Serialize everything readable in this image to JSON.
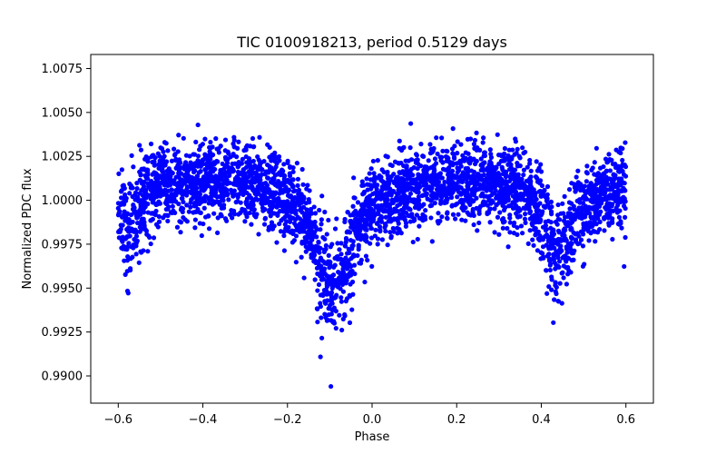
{
  "chart_data": {
    "type": "scatter",
    "title": "TIC 0100918213, period 0.5129 days",
    "xlabel": "Phase",
    "ylabel": "Normalized PDC flux",
    "xlim": [
      -0.665,
      0.665
    ],
    "ylim": [
      0.98845,
      1.0083
    ],
    "xticks": [
      -0.6,
      -0.4,
      -0.2,
      0.0,
      0.2,
      0.4,
      0.6
    ],
    "xtick_labels": [
      "−0.6",
      "−0.4",
      "−0.2",
      "0.0",
      "0.2",
      "0.4",
      "0.6"
    ],
    "yticks": [
      0.99,
      0.9925,
      0.995,
      0.9975,
      1.0,
      1.0025,
      1.005,
      1.0075
    ],
    "ytick_labels": [
      "0.9900",
      "0.9925",
      "0.9950",
      "0.9975",
      "1.0000",
      "1.0025",
      "1.0050",
      "1.0075"
    ],
    "grid": false,
    "marker_color": "#0000ff",
    "series": [
      {
        "color": "#0000ff",
        "x": [
          -0.6,
          -0.59,
          -0.58,
          -0.57,
          -0.56,
          -0.55,
          -0.54,
          -0.53,
          -0.52,
          -0.51,
          -0.5,
          -0.49,
          -0.48,
          -0.47,
          -0.46,
          -0.45,
          -0.44,
          -0.43,
          -0.42,
          -0.41,
          -0.4,
          -0.39,
          -0.38,
          -0.37,
          -0.36,
          -0.35,
          -0.34,
          -0.33,
          -0.32,
          -0.31,
          -0.3,
          -0.29,
          -0.28,
          -0.27,
          -0.26,
          -0.25,
          -0.24,
          -0.23,
          -0.22,
          -0.21,
          -0.2,
          -0.19,
          -0.18,
          -0.17,
          -0.16,
          -0.15,
          -0.14,
          -0.13,
          -0.12,
          -0.11,
          -0.1,
          -0.09,
          -0.08,
          -0.07,
          -0.06,
          -0.05,
          -0.04,
          -0.03,
          -0.02,
          -0.01,
          0.0,
          0.01,
          0.02,
          0.03,
          0.04,
          0.05,
          0.06,
          0.07,
          0.08,
          0.09,
          0.1,
          0.11,
          0.12,
          0.13,
          0.14,
          0.15,
          0.16,
          0.17,
          0.18,
          0.19,
          0.2,
          0.21,
          0.22,
          0.23,
          0.24,
          0.25,
          0.26,
          0.27,
          0.28,
          0.29,
          0.3,
          0.31,
          0.32,
          0.33,
          0.34,
          0.35,
          0.36,
          0.37,
          0.38,
          0.39,
          0.4,
          0.41,
          0.42,
          0.43,
          0.44,
          0.45,
          0.46,
          0.47,
          0.48,
          0.49,
          0.5,
          0.51,
          0.52,
          0.53,
          0.54,
          0.55,
          0.56,
          0.57,
          0.58,
          0.59,
          0.6
        ],
        "y": [
          0.9992,
          0.9988,
          0.9985,
          0.9986,
          0.999,
          0.9995,
          1.0,
          1.0003,
          1.0005,
          1.0007,
          1.0008,
          1.0008,
          1.0009,
          1.0009,
          1.0009,
          1.001,
          1.001,
          1.001,
          1.001,
          1.001,
          1.001,
          1.001,
          1.001,
          1.001,
          1.001,
          1.0011,
          1.0011,
          1.0011,
          1.0011,
          1.0011,
          1.001,
          1.001,
          1.0009,
          1.0008,
          1.0007,
          1.0006,
          1.0005,
          1.0004,
          1.0003,
          1.0001,
          0.9999,
          0.9997,
          0.9994,
          0.9991,
          0.9987,
          0.9982,
          0.9976,
          0.997,
          0.9963,
          0.9957,
          0.9952,
          0.995,
          0.9952,
          0.9958,
          0.9966,
          0.9974,
          0.9981,
          0.9986,
          0.999,
          0.9993,
          0.9995,
          0.9997,
          0.9998,
          1.0,
          1.0001,
          1.0002,
          1.0003,
          1.0004,
          1.0005,
          1.0006,
          1.0007,
          1.0008,
          1.0008,
          1.0009,
          1.0009,
          1.001,
          1.001,
          1.001,
          1.001,
          1.001,
          1.001,
          1.001,
          1.0011,
          1.0011,
          1.0011,
          1.0011,
          1.0011,
          1.0011,
          1.0011,
          1.001,
          1.001,
          1.0009,
          1.0008,
          1.0007,
          1.0006,
          1.0005,
          1.0004,
          1.0003,
          1.0001,
          0.9998,
          0.9993,
          0.9986,
          0.9978,
          0.9972,
          0.997,
          0.9973,
          0.9979,
          0.9985,
          0.999,
          0.9994,
          0.9997,
          0.9999,
          1.0001,
          1.0002,
          1.0003,
          1.0004,
          1.0005,
          1.0005,
          1.0005,
          1.0005,
          1.0005
        ]
      }
    ],
    "scatter_density_note": "Dense point cloud around the series curve"
  }
}
